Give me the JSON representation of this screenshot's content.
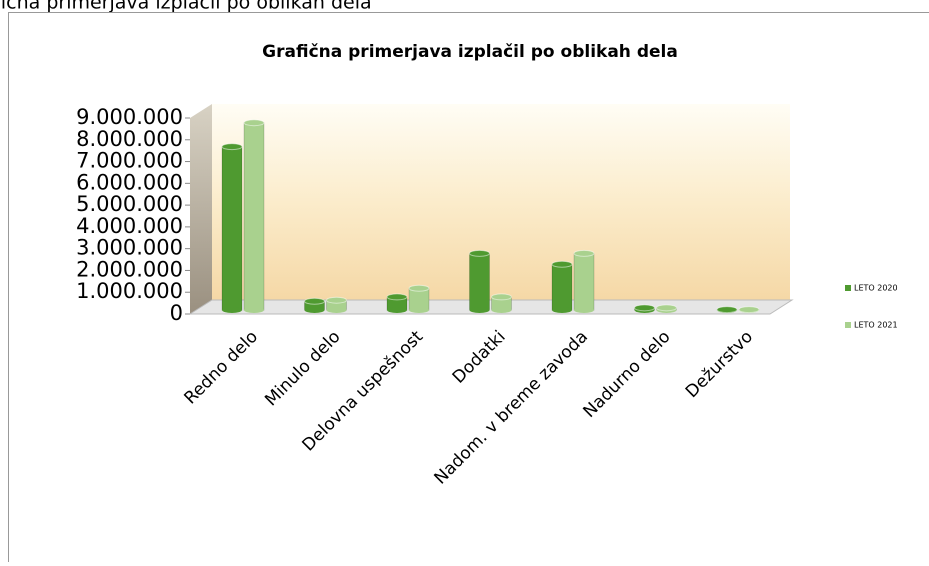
{
  "caption": "Grafična primerjava izplačil po oblikah dela",
  "chart_data": {
    "type": "bar",
    "title": "Grafična primerjava izplačil po oblikah dela",
    "categories": [
      "Redno delo",
      "Minulo delo",
      "Delovna uspešnost",
      "Dodatki",
      "Nadom. v breme zavoda",
      "Nadurno delo",
      "Dežurstvo"
    ],
    "series": [
      {
        "name": "LETO 2020",
        "color": "#4f9a30",
        "values": [
          7500000,
          400000,
          600000,
          2600000,
          2100000,
          100000,
          20000
        ]
      },
      {
        "name": "LETO 2021",
        "color": "#a9d18e",
        "values": [
          8600000,
          450000,
          1000000,
          600000,
          2600000,
          100000,
          20000
        ]
      }
    ],
    "ylim": [
      0,
      9000000
    ],
    "yticks": [
      0,
      {
        "value": 1000000,
        "label": "1.000.000"
      },
      {
        "value": 2000000,
        "label": "2.000.000"
      },
      {
        "value": 3000000,
        "label": "3.000.000"
      },
      {
        "value": 4000000,
        "label": "4.000.000"
      },
      {
        "value": 5000000,
        "label": "5.000.000"
      },
      {
        "value": 6000000,
        "label": "6.000.000"
      },
      {
        "value": 7000000,
        "label": "7.000.000"
      },
      {
        "value": 8000000,
        "label": "8.000.000"
      },
      {
        "value": 9000000,
        "label": "9.000.000"
      }
    ],
    "legend": "right"
  }
}
